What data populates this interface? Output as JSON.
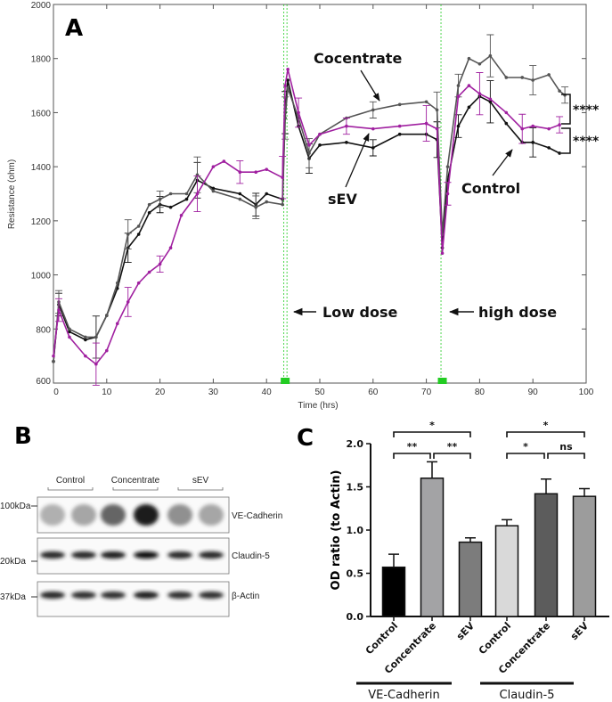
{
  "chart_data": [
    {
      "panel": "A",
      "type": "line",
      "xlabel": "Time (hrs)",
      "ylabel": "Resistance (ohm)",
      "xlim": [
        0,
        100
      ],
      "ylim": [
        600,
        2000
      ],
      "xticks": [
        "0",
        "10",
        "20",
        "30",
        "40",
        "50",
        "60",
        "70",
        "80",
        "90",
        "100"
      ],
      "yticks": [
        "600",
        "800",
        "1000",
        "1200",
        "1400",
        "1600",
        "1800",
        "2000"
      ],
      "grid": false,
      "series": [
        {
          "name": "Control",
          "color": "#111111",
          "x": [
            0,
            1,
            3,
            6,
            8,
            10,
            12,
            14,
            16,
            18,
            20,
            22,
            25,
            27,
            30,
            35,
            38,
            40,
            43,
            43.5,
            44,
            46,
            48,
            50,
            55,
            60,
            65,
            70,
            72,
            73,
            74,
            76,
            78,
            80,
            82,
            85,
            88,
            90,
            93,
            95
          ],
          "y": [
            680,
            890,
            790,
            760,
            770,
            850,
            950,
            1100,
            1150,
            1230,
            1260,
            1250,
            1280,
            1350,
            1320,
            1300,
            1260,
            1300,
            1280,
            1600,
            1720,
            1550,
            1430,
            1480,
            1490,
            1470,
            1520,
            1520,
            1500,
            1100,
            1350,
            1550,
            1620,
            1660,
            1640,
            1560,
            1490,
            1490,
            1470,
            1450
          ]
        },
        {
          "name": "Cocentrate",
          "color": "#555555",
          "x": [
            0,
            1,
            3,
            6,
            8,
            10,
            12,
            14,
            16,
            18,
            20,
            22,
            25,
            27,
            30,
            35,
            38,
            40,
            43,
            43.5,
            44,
            46,
            48,
            50,
            55,
            60,
            65,
            70,
            72,
            73,
            74,
            76,
            78,
            80,
            82,
            85,
            88,
            90,
            93,
            95,
            96
          ],
          "y": [
            680,
            900,
            800,
            770,
            770,
            850,
            970,
            1150,
            1180,
            1260,
            1280,
            1300,
            1300,
            1370,
            1310,
            1280,
            1250,
            1270,
            1260,
            1580,
            1690,
            1580,
            1450,
            1520,
            1580,
            1610,
            1630,
            1640,
            1610,
            1150,
            1400,
            1700,
            1800,
            1780,
            1810,
            1730,
            1730,
            1720,
            1740,
            1680,
            1665
          ]
        },
        {
          "name": "sEV",
          "color": "#a020a0",
          "x": [
            0,
            1,
            3,
            6,
            8,
            10,
            12,
            14,
            16,
            18,
            20,
            22,
            24,
            27,
            30,
            32,
            35,
            38,
            40,
            43,
            43.5,
            44,
            46,
            48,
            50,
            55,
            60,
            65,
            70,
            72,
            73,
            74,
            76,
            78,
            80,
            82,
            85,
            88,
            90,
            93,
            95
          ],
          "y": [
            700,
            870,
            770,
            700,
            670,
            720,
            820,
            900,
            970,
            1010,
            1040,
            1100,
            1220,
            1300,
            1400,
            1420,
            1380,
            1380,
            1390,
            1360,
            1700,
            1760,
            1600,
            1480,
            1520,
            1550,
            1540,
            1550,
            1560,
            1540,
            1080,
            1300,
            1660,
            1700,
            1670,
            1650,
            1600,
            1540,
            1550,
            1540,
            1555
          ]
        }
      ],
      "events": [
        {
          "x": 43.5,
          "label": "Low dose"
        },
        {
          "x": 73,
          "label": "high dose"
        }
      ],
      "annotations": {
        "concentrate": "Cocentrate",
        "sev": "sEV",
        "control": "Control"
      },
      "significance": [
        "****",
        "****"
      ],
      "event_marker_color": "#22cc22"
    },
    {
      "panel": "C",
      "type": "bar",
      "ylabel": "OD ratio (to Actin)",
      "ylim": [
        0,
        2.0
      ],
      "yticks": [
        "0.0",
        "0.5",
        "1.0",
        "1.5",
        "2.0"
      ],
      "categories": [
        "Control",
        "Concentrate",
        "sEV",
        "Control",
        "Concentrate",
        "sEV"
      ],
      "groups": [
        {
          "label": "VE-Cadherin"
        },
        {
          "label": "Claudin-5"
        }
      ],
      "values": [
        0.57,
        1.6,
        0.86,
        1.05,
        1.42,
        1.39
      ],
      "errors": [
        0.15,
        0.19,
        0.05,
        0.07,
        0.17,
        0.09
      ],
      "colors": [
        "#000000",
        "#a3a3a5",
        "#7c7c7c",
        "#d9d9d9",
        "#5c5c5c",
        "#9c9c9c"
      ],
      "significance": [
        {
          "from": 0,
          "to": 1,
          "label": "**"
        },
        {
          "from": 1,
          "to": 2,
          "label": "**"
        },
        {
          "from": 0,
          "to": 2,
          "label": "*"
        },
        {
          "from": 3,
          "to": 4,
          "label": "*"
        },
        {
          "from": 4,
          "to": 5,
          "label": "ns"
        },
        {
          "from": 3,
          "to": 5,
          "label": "*"
        }
      ]
    }
  ],
  "panels": {
    "a": "A",
    "b": "B",
    "c": "C"
  },
  "blot": {
    "groups": [
      "Control",
      "Concentrate",
      "sEV"
    ],
    "rows": [
      {
        "marker": "100kDa",
        "protein": "VE-Cadherin",
        "intensity": [
          0.25,
          0.3,
          0.6,
          0.95,
          0.4,
          0.3
        ]
      },
      {
        "marker": "20kDa",
        "protein": "Claudin-5",
        "intensity": [
          0.9,
          0.9,
          0.95,
          1.0,
          0.9,
          0.9
        ]
      },
      {
        "marker": "37kDa",
        "protein": "β-Actin",
        "intensity": [
          0.9,
          0.85,
          0.85,
          0.95,
          0.85,
          0.85
        ]
      }
    ]
  }
}
